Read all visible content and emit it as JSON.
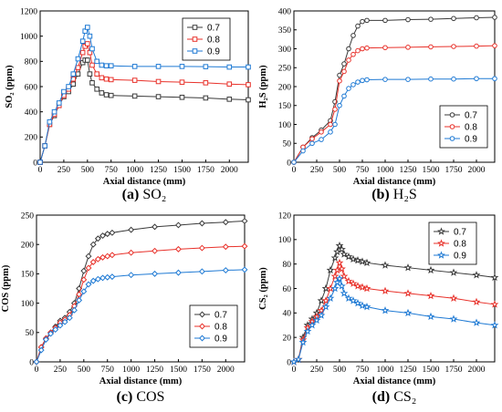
{
  "colors": {
    "s07": "#3a3a3a",
    "s08": "#e8312a",
    "s09": "#1f7ad4"
  },
  "chart_data": [
    {
      "id": "so2",
      "type": "line",
      "caption_letter": "(a)",
      "caption_text": "SO₂",
      "xlabel": "Axial distance (mm)",
      "ylabel": "SO₂ (ppm)",
      "xlim": [
        0,
        2200
      ],
      "ylim": [
        0,
        1200
      ],
      "xticks": [
        0,
        250,
        500,
        750,
        1000,
        1250,
        1500,
        1750,
        2000
      ],
      "yticks": [
        0,
        200,
        400,
        600,
        800,
        1000,
        1200
      ],
      "marker": "square",
      "legend_position": "top-right",
      "series": [
        {
          "name": "0.7",
          "color": "#3a3a3a",
          "x": [
            0,
            50,
            100,
            150,
            200,
            250,
            300,
            350,
            400,
            450,
            475,
            500,
            525,
            550,
            600,
            650,
            700,
            750,
            1000,
            1250,
            1500,
            1750,
            2000,
            2200
          ],
          "y": [
            0,
            130,
            300,
            370,
            450,
            520,
            560,
            620,
            700,
            790,
            810,
            810,
            700,
            630,
            580,
            550,
            535,
            530,
            525,
            520,
            515,
            510,
            500,
            495
          ]
        },
        {
          "name": "0.8",
          "color": "#e8312a",
          "x": [
            0,
            50,
            100,
            150,
            200,
            250,
            300,
            350,
            400,
            450,
            475,
            500,
            525,
            550,
            600,
            650,
            700,
            750,
            1000,
            1250,
            1500,
            1750,
            2000,
            2200
          ],
          "y": [
            0,
            130,
            300,
            380,
            450,
            530,
            580,
            660,
            750,
            870,
            920,
            940,
            870,
            770,
            700,
            670,
            660,
            655,
            650,
            640,
            635,
            630,
            620,
            615
          ]
        },
        {
          "name": "0.9",
          "color": "#1f7ad4",
          "x": [
            0,
            50,
            100,
            150,
            200,
            250,
            300,
            350,
            400,
            450,
            475,
            500,
            525,
            550,
            600,
            650,
            700,
            750,
            1000,
            1250,
            1500,
            1750,
            2000,
            2200
          ],
          "y": [
            0,
            130,
            320,
            400,
            470,
            560,
            600,
            700,
            820,
            960,
            1040,
            1070,
            1000,
            900,
            800,
            770,
            765,
            765,
            760,
            760,
            760,
            758,
            755,
            755
          ]
        }
      ]
    },
    {
      "id": "h2s",
      "type": "line",
      "caption_letter": "(b)",
      "caption_text": "H₂S",
      "xlabel": "Axial distance (mm)",
      "ylabel": "H₂S (ppm)",
      "xlim": [
        0,
        2200
      ],
      "ylim": [
        0,
        400
      ],
      "xticks": [
        0,
        250,
        500,
        750,
        1000,
        1250,
        1500,
        1750,
        2000
      ],
      "yticks": [
        0,
        50,
        100,
        150,
        200,
        250,
        300,
        350,
        400
      ],
      "marker": "circle",
      "legend_position": "bottom-right",
      "series": [
        {
          "name": "0.7",
          "color": "#3a3a3a",
          "x": [
            0,
            100,
            200,
            300,
            400,
            450,
            500,
            550,
            600,
            650,
            700,
            750,
            800,
            1000,
            1250,
            1500,
            1750,
            2000,
            2200
          ],
          "y": [
            0,
            40,
            65,
            85,
            110,
            160,
            230,
            260,
            300,
            335,
            360,
            372,
            375,
            375,
            377,
            378,
            380,
            382,
            383
          ]
        },
        {
          "name": "0.8",
          "color": "#e8312a",
          "x": [
            0,
            100,
            200,
            300,
            400,
            450,
            500,
            550,
            600,
            650,
            700,
            750,
            800,
            1000,
            1250,
            1500,
            1750,
            2000,
            2200
          ],
          "y": [
            0,
            40,
            62,
            80,
            100,
            140,
            215,
            240,
            270,
            285,
            295,
            300,
            302,
            303,
            304,
            305,
            306,
            307,
            308
          ]
        },
        {
          "name": "0.9",
          "color": "#1f7ad4",
          "x": [
            0,
            100,
            200,
            300,
            400,
            450,
            500,
            550,
            600,
            650,
            700,
            750,
            800,
            1000,
            1250,
            1500,
            1750,
            2000,
            2200
          ],
          "y": [
            0,
            30,
            50,
            60,
            80,
            100,
            150,
            175,
            195,
            205,
            212,
            216,
            218,
            219,
            219,
            220,
            220,
            221,
            221
          ]
        }
      ]
    },
    {
      "id": "cos",
      "type": "line",
      "caption_letter": "(c)",
      "caption_text": "COS",
      "xlabel": "Axial distance (mm)",
      "ylabel": "COS (ppm)",
      "xlim": [
        0,
        2200
      ],
      "ylim": [
        0,
        250
      ],
      "xticks": [
        0,
        250,
        500,
        750,
        1000,
        1250,
        1500,
        1750,
        2000
      ],
      "yticks": [
        0,
        50,
        100,
        150,
        200,
        250
      ],
      "marker": "diamond",
      "legend_position": "bottom-right",
      "series": [
        {
          "name": "0.7",
          "color": "#3a3a3a",
          "x": [
            0,
            50,
            100,
            150,
            200,
            250,
            300,
            350,
            400,
            450,
            500,
            550,
            600,
            650,
            700,
            750,
            800,
            1000,
            1250,
            1500,
            1750,
            2000,
            2200
          ],
          "y": [
            0,
            25,
            40,
            50,
            60,
            70,
            75,
            85,
            100,
            125,
            155,
            180,
            200,
            210,
            215,
            218,
            220,
            225,
            230,
            233,
            236,
            238,
            240
          ]
        },
        {
          "name": "0.8",
          "color": "#e8312a",
          "x": [
            0,
            50,
            100,
            150,
            200,
            250,
            300,
            350,
            400,
            450,
            500,
            550,
            600,
            650,
            700,
            750,
            800,
            1000,
            1250,
            1500,
            1750,
            2000,
            2200
          ],
          "y": [
            0,
            25,
            40,
            50,
            58,
            67,
            72,
            80,
            95,
            115,
            140,
            160,
            170,
            175,
            178,
            180,
            182,
            186,
            189,
            192,
            194,
            196,
            197
          ]
        },
        {
          "name": "0.9",
          "color": "#1f7ad4",
          "x": [
            0,
            50,
            100,
            150,
            200,
            250,
            300,
            350,
            400,
            450,
            500,
            550,
            600,
            650,
            700,
            750,
            800,
            1000,
            1250,
            1500,
            1750,
            2000,
            2200
          ],
          "y": [
            0,
            20,
            38,
            48,
            55,
            62,
            68,
            75,
            88,
            105,
            120,
            132,
            138,
            141,
            143,
            144,
            145,
            148,
            150,
            152,
            154,
            156,
            157
          ]
        }
      ]
    },
    {
      "id": "cs2",
      "type": "line",
      "caption_letter": "(d)",
      "caption_text": "CS₂",
      "xlabel": "Axial distance (mm)",
      "ylabel": "CS₂ (ppm)",
      "xlim": [
        0,
        2200
      ],
      "ylim": [
        0,
        120
      ],
      "xticks": [
        0,
        250,
        500,
        750,
        1000,
        1250,
        1500,
        1750,
        2000
      ],
      "yticks": [
        0,
        20,
        40,
        60,
        80,
        100,
        120
      ],
      "marker": "star",
      "legend_position": "top-right",
      "series": [
        {
          "name": "0.7",
          "color": "#3a3a3a",
          "x": [
            0,
            50,
            100,
            150,
            200,
            250,
            300,
            350,
            400,
            450,
            475,
            500,
            525,
            550,
            600,
            650,
            700,
            750,
            800,
            1000,
            1250,
            1500,
            1750,
            2000,
            2200
          ],
          "y": [
            0,
            2,
            20,
            30,
            35,
            40,
            50,
            60,
            75,
            85,
            90,
            95,
            92,
            88,
            86,
            84,
            83,
            82,
            81,
            79,
            77,
            75,
            73,
            71,
            69
          ]
        },
        {
          "name": "0.8",
          "color": "#e8312a",
          "x": [
            0,
            50,
            100,
            150,
            200,
            250,
            300,
            350,
            400,
            450,
            475,
            500,
            525,
            550,
            600,
            650,
            700,
            750,
            800,
            1000,
            1250,
            1500,
            1750,
            2000,
            2200
          ],
          "y": [
            0,
            2,
            18,
            28,
            33,
            37,
            42,
            50,
            60,
            70,
            75,
            81,
            76,
            70,
            66,
            64,
            62,
            61,
            60,
            58,
            56,
            54,
            52,
            49,
            47
          ]
        },
        {
          "name": "0.9",
          "color": "#1f7ad4",
          "x": [
            0,
            50,
            100,
            150,
            200,
            250,
            300,
            350,
            400,
            450,
            475,
            500,
            525,
            550,
            600,
            650,
            700,
            750,
            800,
            1000,
            1250,
            1500,
            1750,
            2000,
            2200
          ],
          "y": [
            0,
            2,
            16,
            25,
            30,
            34,
            38,
            45,
            52,
            60,
            65,
            68,
            62,
            56,
            52,
            50,
            48,
            46,
            45,
            42,
            40,
            37,
            35,
            32,
            30
          ]
        }
      ]
    }
  ]
}
